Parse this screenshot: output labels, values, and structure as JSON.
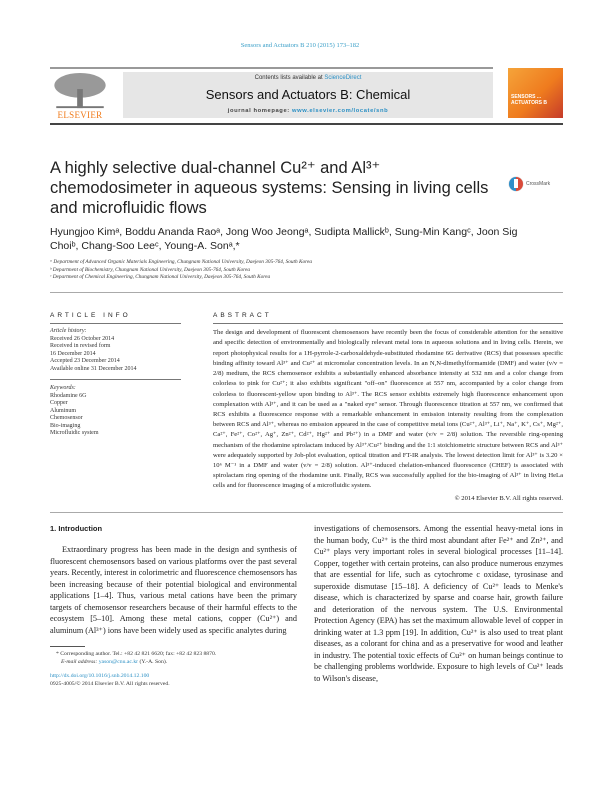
{
  "header": {
    "journal_ref": "Sensors and Actuators B 210 (2015) 173–182",
    "contents_prefix": "Contents lists available at ",
    "contents_link": "ScienceDirect",
    "journal_name": "Sensors and Actuators B: Chemical",
    "homepage_prefix": "journal homepage: ",
    "homepage_url": "www.elsevier.com/locate/snb",
    "publisher_logo": "ELSEVIER",
    "cover_text": "SENSORS ... ACTUATORS B"
  },
  "article": {
    "title": "A highly selective dual-channel Cu²⁺ and Al³⁺ chemodosimeter in aqueous systems: Sensing in living cells and microfluidic flows",
    "crossmark": "CrossMark",
    "authors": "Hyungjoo Kimᵃ, Boddu Ananda Raoᵃ, Jong Woo Jeongᵃ, Sudipta Mallickᵇ, Sung-Min Kangᶜ, Joon Sig Choiᵇ, Chang-Soo Leeᶜ, Young-A. Sonᵃ,*",
    "affiliations": [
      "ᵃ Department of Advanced Organic Materials Engineering, Chungnam National University, Daejeon 305-764, South Korea",
      "ᵇ Department of Biochemistry, Chungnam National University, Daejeon 305-764, South Korea",
      "ᶜ Department of Chemical Engineering, Chungnam National University, Daejeon 305-764, South Korea"
    ]
  },
  "article_info": {
    "heading": "ARTICLE INFO",
    "history_label": "Article history:",
    "history": [
      "Received 26 October 2014",
      "Received in revised form",
      "16 December 2014",
      "Accepted 23 December 2014",
      "Available online 31 December 2014"
    ],
    "keywords_label": "Keywords:",
    "keywords": [
      "Rhodamine 6G",
      "Copper",
      "Aluminum",
      "Chemosensor",
      "Bio-imaging",
      "Microfluidic system"
    ]
  },
  "abstract": {
    "heading": "ABSTRACT",
    "text": "The design and development of fluorescent chemosensors have recently been the focus of considerable attention for the sensitive and specific detection of environmentally and biologically relevant metal ions in aqueous solutions and in living cells. Herein, we report photophysical results for a 1H-pyrrole-2-carboxaldehyde-substituted rhodamine 6G derivative (RCS) that possesses specific binding affinity toward Al³⁺ and Cu²⁺ at micromolar concentration levels. In an N,N-dimethylformamide (DMF) and water (v/v = 2/8) medium, the RCS chemosensor exhibits a substantially enhanced absorbance intensity at 532 nm and a color change from colorless to pink for Cu²⁺; it also exhibits significant \"off–on\" fluorescence at 557 nm, accompanied by a color change from colorless to fluorescent-yellow upon binding to Al³⁺. The RCS sensor exhibits extremely high fluorescence enhancement upon complexation with Al³⁺, and it can be used as a \"naked eye\" sensor. Through fluorescence titration at 557 nm, we confirmed that RCS exhibits a fluorescence response with a remarkable enhancement in emission intensity resulting from the complexation between RCS and Al³⁺, whereas no emission appeared in the case of competitive metal ions (Cu²⁺, Al³⁺, Li⁺, Na⁺, K⁺, Cs⁺, Mg²⁺, Ca²⁺, Fe²⁺, Co²⁺, Ag⁺, Zn²⁺, Cd²⁺, Hg²⁺ and Pb²⁺) in a DMF and water (v/v = 2/8) solution. The reversible ring-opening mechanism of the rhodamine spirolactam induced by Al³⁺/Cu²⁺ binding and the 1:1 stoichiometric structure between RCS and Al³⁺ were adequately supported by Job-plot evaluation, optical titration and FT-IR analysis. The lowest detection limit for Al³⁺ is 3.20 × 10⁶ M⁻¹ in a DMF and water (v/v = 2/8) solution. Al³⁺-induced chelation-enhanced fluorescence (CHEF) is associated with spirolactam ring opening of the rhodamine unit. Finally, RCS was successfully applied for the bio-imaging of Al³⁺ in living HeLa cells and for fluorescence imaging of a microfluidic system.",
    "copyright": "© 2014 Elsevier B.V. All rights reserved."
  },
  "intro": {
    "heading": "1. Introduction",
    "left": "Extraordinary progress has been made in the design and synthesis of fluorescent chemosensors based on various platforms over the past several years. Recently, interest in colorimetric and fluorescence chemosensors has been increasing because of their potential biological and environmental applications [1–4]. Thus, various metal cations have been the primary targets of chemosensor researchers because of their harmful effects to the ecosystem [5–10]. Among these metal cations, copper (Cu²⁺) and aluminum (Al³⁺) ions have been widely used as specific analytes during",
    "right": "investigations of chemosensors. Among the essential heavy-metal ions in the human body, Cu²⁺ is the third most abundant after Fe²⁺ and Zn²⁺, and Cu²⁺ plays very important roles in several biological processes [11–14]. Copper, together with certain proteins, can also produce numerous enzymes that are essential for life, such as cytochrome c oxidase, tyrosinase and superoxide dismutase [15–18]. A deficiency of Cu²⁺ leads to Menke's disease, which is characterized by sparse and coarse hair, growth failure and deterioration of the nervous system. The U.S. Environmental Protection Agency (EPA) has set the maximum allowable level of copper in drinking water at 1.3 ppm [19]. In addition, Cu²⁺ is also used to treat plant diseases, as a colorant for china and as a preservative for wood and leather in industry. The potential toxic effects of Cu²⁺ on human beings continue to be challenging problems worldwide. Exposure to high levels of Cu²⁺ leads to Wilson's disease,"
  },
  "footnote": {
    "corresponding": "* Corresponding author. Tel.: +82 42 821 6620; fax: +82 42 823 8870.",
    "email_label": "E-mail address: ",
    "email": "yason@cnu.ac.kr",
    "email_suffix": " (Y.-A. Son).",
    "doi": "http://dx.doi.org/10.1016/j.snb.2014.12.100",
    "issn": "0925-4005/© 2014 Elsevier B.V. All rights reserved."
  },
  "colors": {
    "link": "#2a8fc4",
    "elsevier_orange": "#f07a1a",
    "band": "#e6e6e6"
  }
}
